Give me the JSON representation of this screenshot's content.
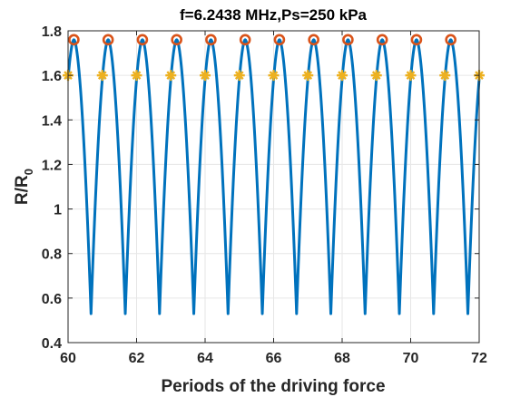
{
  "chart_data": {
    "type": "line",
    "title": "f=6.2438 MHz,Ps=250 kPa",
    "xlabel": "Periods of the driving force",
    "ylabel_main": "R/R",
    "ylabel_sub": "0",
    "xlim": [
      60,
      72
    ],
    "ylim": [
      0.4,
      1.8
    ],
    "xticks": [
      60,
      62,
      64,
      66,
      68,
      70,
      72
    ],
    "xtick_labels": [
      "60",
      "62",
      "64",
      "66",
      "68",
      "70",
      "72"
    ],
    "yticks": [
      0.4,
      0.6,
      0.8,
      1.0,
      1.2,
      1.4,
      1.6,
      1.8
    ],
    "ytick_labels": [
      "0.4",
      "0.6",
      "0.8",
      "1",
      "1.2",
      "1.4",
      "1.6",
      "1.8"
    ],
    "grid": true,
    "curve": {
      "color": "#0072BD",
      "period": 1,
      "max_positions": [
        60.17,
        61.17,
        62.17,
        63.17,
        64.17,
        65.17,
        66.17,
        67.17,
        68.17,
        69.17,
        70.17,
        71.17
      ],
      "min_positions": [
        60.67,
        61.67,
        62.67,
        63.67,
        64.67,
        65.67,
        66.67,
        67.67,
        68.67,
        69.67,
        70.67,
        71.67
      ],
      "r_max": 1.76,
      "r_min": 0.53
    },
    "maxima": {
      "color": "#D95319",
      "x": [
        60.17,
        61.17,
        62.17,
        63.17,
        64.17,
        65.17,
        66.17,
        67.17,
        68.17,
        69.17,
        70.17,
        71.17
      ],
      "y": [
        1.76,
        1.76,
        1.76,
        1.76,
        1.76,
        1.76,
        1.76,
        1.76,
        1.76,
        1.76,
        1.76,
        1.76
      ]
    },
    "period_samples": {
      "color": "#EDB120",
      "x": [
        60,
        61,
        62,
        63,
        64,
        65,
        66,
        67,
        68,
        69,
        70,
        71,
        72
      ],
      "y": [
        1.6,
        1.6,
        1.6,
        1.6,
        1.6,
        1.6,
        1.6,
        1.6,
        1.6,
        1.6,
        1.6,
        1.6,
        1.6
      ]
    }
  }
}
